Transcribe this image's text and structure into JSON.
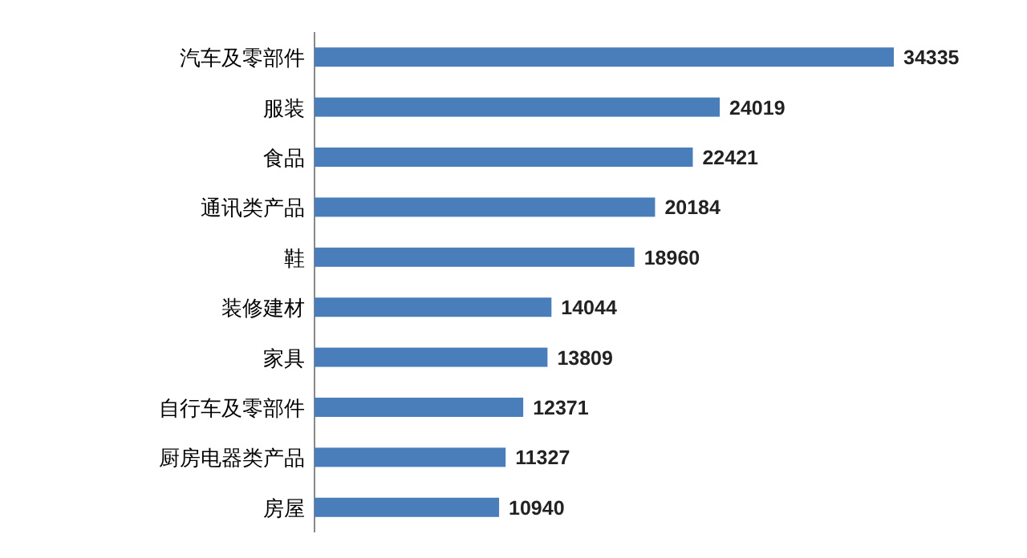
{
  "chart_data": {
    "type": "bar",
    "orientation": "horizontal",
    "categories": [
      "汽车及零部件",
      "服装",
      "食品",
      "通讯类产品",
      "鞋",
      "装修建材",
      "家具",
      "自行车及零部件",
      "厨房电器类产品",
      "房屋"
    ],
    "values": [
      34335,
      24019,
      22421,
      20184,
      18960,
      14044,
      13809,
      12371,
      11327,
      10940
    ],
    "color": "#4a7ebb",
    "data_labels": true
  }
}
